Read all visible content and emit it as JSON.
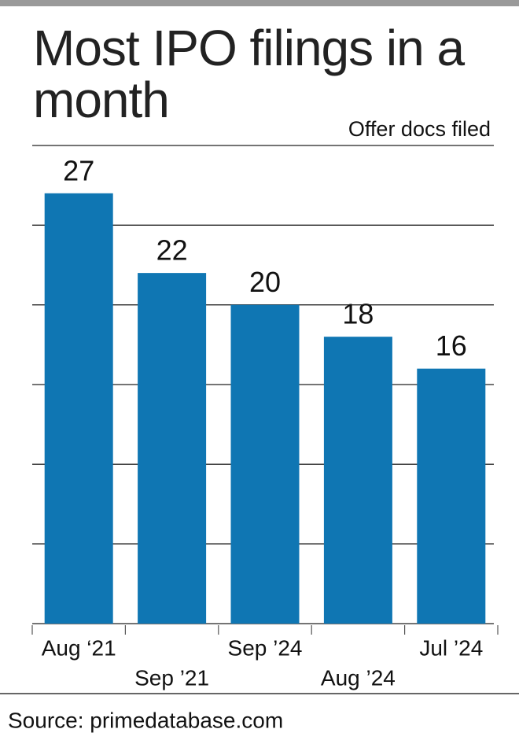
{
  "chart_data": {
    "type": "bar",
    "title": "Most IPO filings in a month",
    "subtitle": "Offer docs filed",
    "categories": [
      "Aug ‘21",
      "Sep ’21",
      "Sep ’24",
      "Aug ’24",
      "Jul ’24"
    ],
    "values": [
      27,
      22,
      20,
      18,
      16
    ],
    "color": "#0f76b3",
    "ylim": [
      0,
      30
    ],
    "yticks": [
      0,
      5,
      10,
      15,
      20,
      25,
      30
    ],
    "grid": true,
    "source": "Source: primedatabase.com"
  }
}
